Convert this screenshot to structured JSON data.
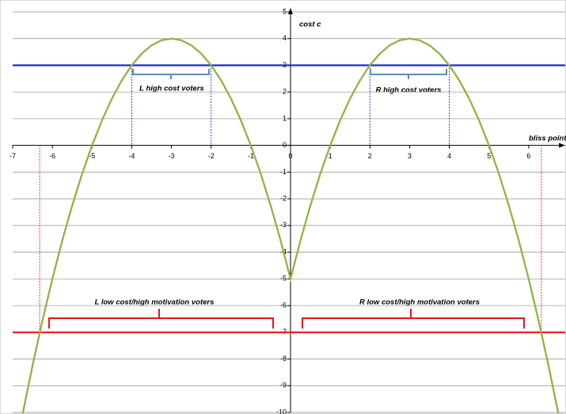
{
  "chart_data": {
    "type": "line",
    "x_label": "bliss point x",
    "y_label": "cost c",
    "xlim": [
      -7,
      7
    ],
    "ylim": [
      -10,
      5
    ],
    "xticks": [
      -7,
      -6,
      -5,
      -4,
      -3,
      -2,
      -1,
      0,
      1,
      2,
      3,
      4,
      5,
      6
    ],
    "yticks": [
      5,
      4,
      3,
      2,
      1,
      0,
      -1,
      -2,
      -3,
      -4,
      -5,
      -6,
      -7,
      -8,
      -9,
      -10
    ],
    "grid": true,
    "x": [
      -6.75,
      -6.5,
      -6.25,
      -6,
      -5.75,
      -5.5,
      -5.25,
      -5,
      -4.75,
      -4.5,
      -4.25,
      -4,
      -3.75,
      -3.5,
      -3.25,
      -3,
      -2.75,
      -2.5,
      -2.25,
      -2,
      -1.75,
      -1.5,
      -1.25,
      -1,
      -0.75,
      -0.5,
      -0.25,
      0,
      0.25,
      0.5,
      0.75,
      1,
      1.25,
      1.5,
      1.75,
      2,
      2.25,
      2.5,
      2.75,
      3,
      3.25,
      3.5,
      3.75,
      4,
      4.25,
      4.5,
      4.75,
      5,
      5.25,
      5.5,
      5.75,
      6,
      6.25,
      6.5,
      6.75
    ],
    "series": [
      {
        "color": "#8db545",
        "values": [
          -10.0625,
          -8.25,
          -6.5625,
          -5,
          -3.5625,
          -2.25,
          -1.0625,
          0,
          0.9375,
          1.75,
          2.4375,
          3,
          3.4375,
          3.75,
          3.9375,
          4,
          3.9375,
          3.75,
          3.4375,
          3,
          2.4375,
          1.75,
          0.9375,
          0,
          -1.0625,
          -2.25,
          -3.5625,
          -5,
          -3.5625,
          -2.25,
          -1.0625,
          0,
          0.9375,
          1.75,
          2.4375,
          3,
          3.4375,
          3.75,
          3.9375,
          4,
          3.9375,
          3.75,
          3.4375,
          3,
          2.4375,
          1.75,
          0.9375,
          0,
          -1.0625,
          -2.25,
          -3.5625,
          -5,
          -6.5625,
          -8.25,
          -10.0625
        ]
      }
    ],
    "hlines": [
      {
        "value": 3,
        "color": "#1a2fc4"
      },
      {
        "value": -7,
        "color": "#e8141b"
      }
    ],
    "vlines": [
      {
        "values": [
          -4,
          -2,
          2,
          4
        ],
        "top": 3,
        "color": "#1a2fc4"
      },
      {
        "values": [
          -6.32,
          6.32
        ],
        "top": -7,
        "color": "#e8141b"
      }
    ],
    "annotations": [
      "L high cost voters",
      "R high cost voters",
      "L low cost/high motivation voters",
      "R low cost/high motivation voters"
    ]
  }
}
